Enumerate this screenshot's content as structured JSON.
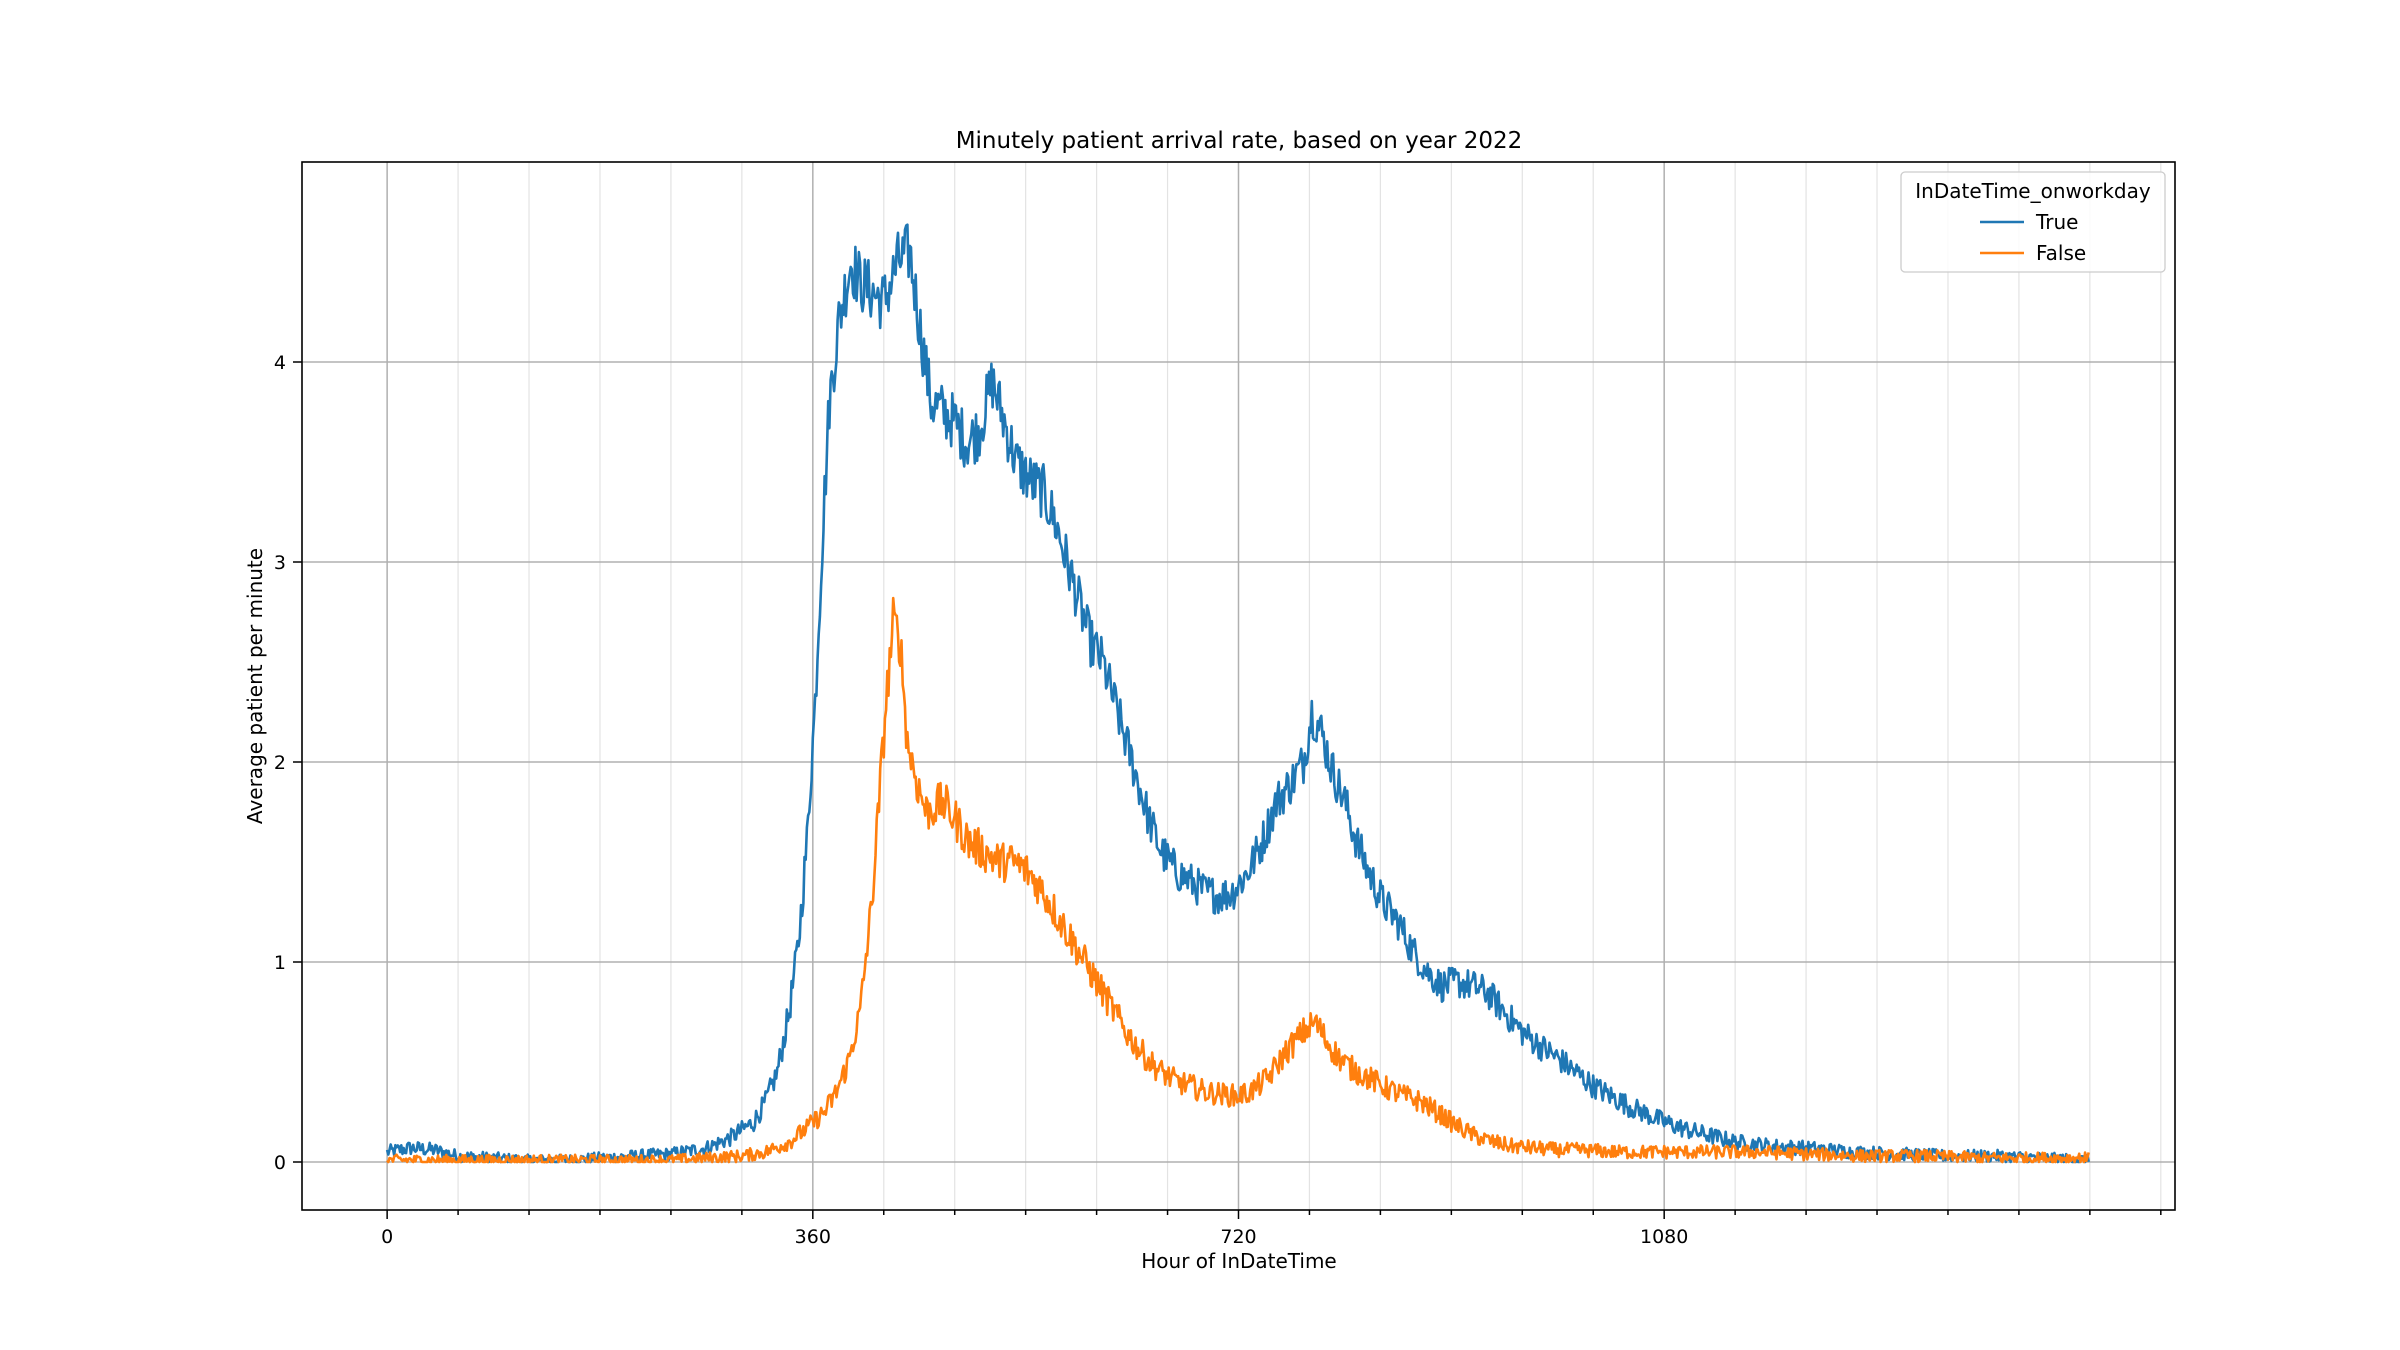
{
  "chart_data": {
    "type": "line",
    "title": "Minutely patient arrival rate, based on year 2022",
    "xlabel": "Hour of InDateTime",
    "ylabel": "Average patient per minute",
    "xlim": [
      -72,
      1512
    ],
    "ylim": [
      -0.24,
      5.0
    ],
    "x_major_ticks": [
      0,
      360,
      720,
      1080
    ],
    "x_minor_step": 60,
    "y_major_ticks": [
      0,
      1,
      2,
      3,
      4
    ],
    "grid": true,
    "legend": {
      "title": "InDateTime_onworkday",
      "placement": "top-right"
    },
    "series": [
      {
        "name": "True",
        "color": "#1f77b4",
        "points": [
          [
            0,
            0.05
          ],
          [
            20,
            0.07
          ],
          [
            40,
            0.06
          ],
          [
            60,
            0.03
          ],
          [
            90,
            0.02
          ],
          [
            120,
            0.01
          ],
          [
            150,
            0.01
          ],
          [
            180,
            0.02
          ],
          [
            210,
            0.03
          ],
          [
            240,
            0.04
          ],
          [
            270,
            0.07
          ],
          [
            290,
            0.12
          ],
          [
            310,
            0.2
          ],
          [
            320,
            0.3
          ],
          [
            330,
            0.45
          ],
          [
            340,
            0.75
          ],
          [
            348,
            1.1
          ],
          [
            355,
            1.6
          ],
          [
            362,
            2.3
          ],
          [
            368,
            3.1
          ],
          [
            374,
            3.8
          ],
          [
            382,
            4.2
          ],
          [
            392,
            4.5
          ],
          [
            400,
            4.4
          ],
          [
            410,
            4.35
          ],
          [
            420,
            4.3
          ],
          [
            432,
            4.5
          ],
          [
            442,
            4.55
          ],
          [
            450,
            4.2
          ],
          [
            460,
            3.8
          ],
          [
            470,
            3.75
          ],
          [
            480,
            3.7
          ],
          [
            490,
            3.6
          ],
          [
            500,
            3.65
          ],
          [
            512,
            3.9
          ],
          [
            522,
            3.7
          ],
          [
            532,
            3.5
          ],
          [
            545,
            3.4
          ],
          [
            555,
            3.35
          ],
          [
            565,
            3.2
          ],
          [
            575,
            3.0
          ],
          [
            585,
            2.8
          ],
          [
            595,
            2.6
          ],
          [
            605,
            2.5
          ],
          [
            615,
            2.3
          ],
          [
            625,
            2.1
          ],
          [
            635,
            1.9
          ],
          [
            645,
            1.7
          ],
          [
            655,
            1.55
          ],
          [
            668,
            1.45
          ],
          [
            680,
            1.4
          ],
          [
            692,
            1.35
          ],
          [
            705,
            1.33
          ],
          [
            715,
            1.35
          ],
          [
            728,
            1.45
          ],
          [
            740,
            1.6
          ],
          [
            752,
            1.8
          ],
          [
            765,
            1.9
          ],
          [
            775,
            2.0
          ],
          [
            782,
            2.25
          ],
          [
            790,
            2.15
          ],
          [
            800,
            1.95
          ],
          [
            810,
            1.8
          ],
          [
            820,
            1.6
          ],
          [
            830,
            1.45
          ],
          [
            842,
            1.3
          ],
          [
            855,
            1.2
          ],
          [
            868,
            1.05
          ],
          [
            880,
            0.95
          ],
          [
            892,
            0.88
          ],
          [
            905,
            0.9
          ],
          [
            918,
            0.88
          ],
          [
            930,
            0.85
          ],
          [
            945,
            0.75
          ],
          [
            960,
            0.65
          ],
          [
            975,
            0.58
          ],
          [
            990,
            0.52
          ],
          [
            1005,
            0.45
          ],
          [
            1020,
            0.38
          ],
          [
            1035,
            0.33
          ],
          [
            1050,
            0.28
          ],
          [
            1065,
            0.24
          ],
          [
            1080,
            0.2
          ],
          [
            1100,
            0.16
          ],
          [
            1120,
            0.13
          ],
          [
            1140,
            0.1
          ],
          [
            1170,
            0.08
          ],
          [
            1200,
            0.07
          ],
          [
            1240,
            0.05
          ],
          [
            1280,
            0.04
          ],
          [
            1320,
            0.03
          ],
          [
            1360,
            0.03
          ],
          [
            1400,
            0.02
          ],
          [
            1439,
            0.01
          ]
        ]
      },
      {
        "name": "False",
        "color": "#ff7f0e",
        "points": [
          [
            0,
            0.01
          ],
          [
            60,
            0.01
          ],
          [
            120,
            0.01
          ],
          [
            180,
            0.01
          ],
          [
            240,
            0.01
          ],
          [
            270,
            0.02
          ],
          [
            300,
            0.03
          ],
          [
            320,
            0.05
          ],
          [
            340,
            0.1
          ],
          [
            355,
            0.17
          ],
          [
            370,
            0.25
          ],
          [
            380,
            0.35
          ],
          [
            390,
            0.5
          ],
          [
            400,
            0.75
          ],
          [
            410,
            1.3
          ],
          [
            416,
            1.8
          ],
          [
            422,
            2.3
          ],
          [
            428,
            2.7
          ],
          [
            434,
            2.6
          ],
          [
            440,
            2.1
          ],
          [
            448,
            1.9
          ],
          [
            456,
            1.75
          ],
          [
            470,
            1.8
          ],
          [
            482,
            1.7
          ],
          [
            492,
            1.6
          ],
          [
            505,
            1.55
          ],
          [
            518,
            1.5
          ],
          [
            530,
            1.5
          ],
          [
            542,
            1.45
          ],
          [
            555,
            1.35
          ],
          [
            565,
            1.25
          ],
          [
            575,
            1.15
          ],
          [
            585,
            1.05
          ],
          [
            595,
            0.95
          ],
          [
            605,
            0.85
          ],
          [
            615,
            0.75
          ],
          [
            625,
            0.65
          ],
          [
            635,
            0.57
          ],
          [
            645,
            0.5
          ],
          [
            655,
            0.45
          ],
          [
            668,
            0.4
          ],
          [
            680,
            0.38
          ],
          [
            692,
            0.35
          ],
          [
            705,
            0.34
          ],
          [
            718,
            0.33
          ],
          [
            730,
            0.35
          ],
          [
            745,
            0.42
          ],
          [
            760,
            0.55
          ],
          [
            775,
            0.65
          ],
          [
            785,
            0.7
          ],
          [
            795,
            0.6
          ],
          [
            805,
            0.52
          ],
          [
            815,
            0.47
          ],
          [
            830,
            0.42
          ],
          [
            845,
            0.37
          ],
          [
            860,
            0.33
          ],
          [
            875,
            0.3
          ],
          [
            890,
            0.24
          ],
          [
            905,
            0.18
          ],
          [
            920,
            0.13
          ],
          [
            935,
            0.1
          ],
          [
            950,
            0.08
          ],
          [
            970,
            0.07
          ],
          [
            990,
            0.06
          ],
          [
            1010,
            0.06
          ],
          [
            1040,
            0.05
          ],
          [
            1080,
            0.05
          ],
          [
            1120,
            0.05
          ],
          [
            1160,
            0.05
          ],
          [
            1200,
            0.04
          ],
          [
            1250,
            0.03
          ],
          [
            1300,
            0.03
          ],
          [
            1350,
            0.02
          ],
          [
            1400,
            0.02
          ],
          [
            1439,
            0.02
          ]
        ]
      }
    ]
  }
}
